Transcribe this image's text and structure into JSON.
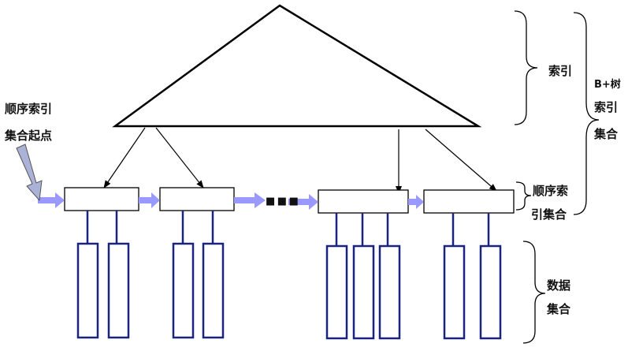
{
  "labels": {
    "index": "索引",
    "bplus_line1": "B+树",
    "bplus_line2": "索引",
    "bplus_line3": "集合",
    "seq_start_line1": "顺序索引",
    "seq_start_line2": "集合起点",
    "seq_set_line1": "顺序索",
    "seq_set_line2": "引集合",
    "data_line1": "数据",
    "data_line2": "集合",
    "ellipsis": "■ ■ ■"
  },
  "colors": {
    "line": "#000000",
    "data_block": "#1a237e",
    "arrow_fill": "#9999ff",
    "start_arrow_fill": "#aab2d8",
    "background": "#ffffff"
  }
}
